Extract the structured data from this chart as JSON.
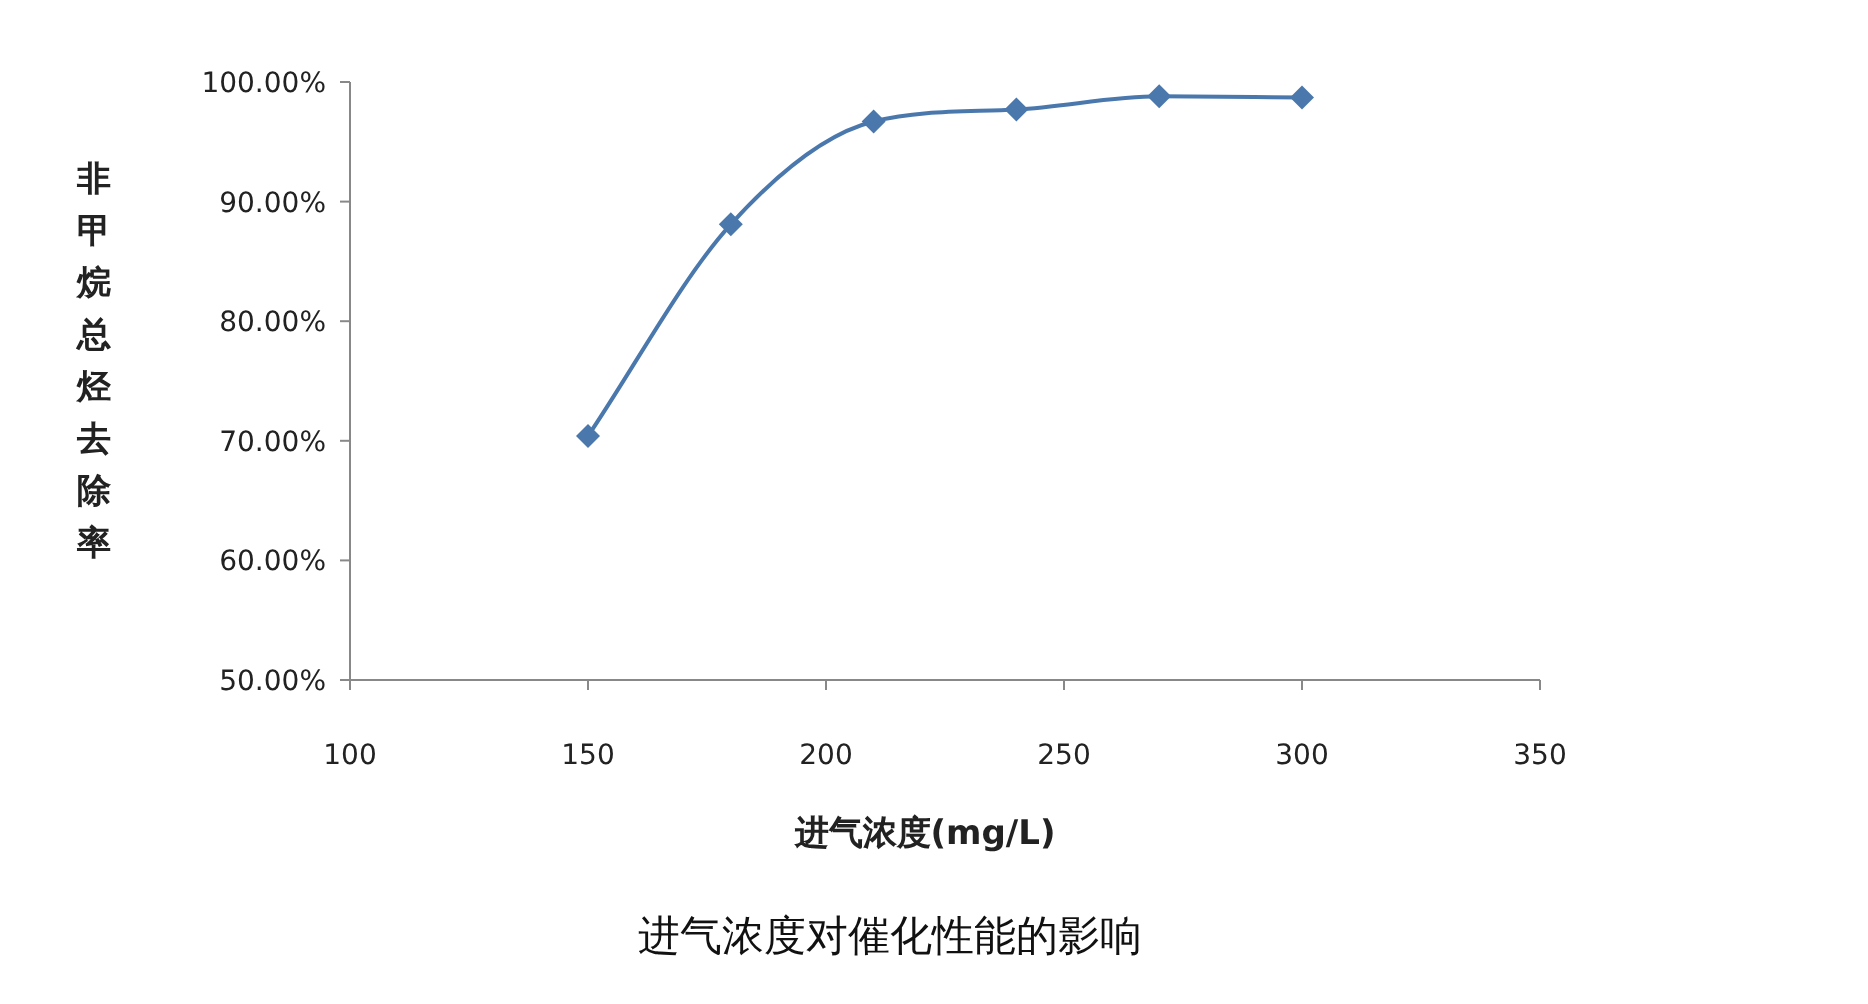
{
  "chart_data": {
    "type": "line",
    "title": "进气浓度对催化性能的影响",
    "xlabel": "进气浓度(mg/L)",
    "ylabel": "非甲烷总烃去除率",
    "x": [
      150,
      180,
      210,
      240,
      270,
      300
    ],
    "series": [
      {
        "color": "#4a78ad",
        "values": [
          70.4,
          88.1,
          96.7,
          97.7,
          98.8,
          98.7
        ]
      }
    ],
    "xlim": [
      100,
      350
    ],
    "xticks": [
      100,
      150,
      200,
      250,
      300,
      350
    ],
    "ylim": [
      50,
      100
    ],
    "yticks": [
      {
        "value": 50,
        "label": "50.00%"
      },
      {
        "value": 60,
        "label": "60.00%"
      },
      {
        "value": 70,
        "label": "70.00%"
      },
      {
        "value": 80,
        "label": "80.00%"
      },
      {
        "value": 90,
        "label": "90.00%"
      },
      {
        "value": 100,
        "label": "100.00%"
      }
    ],
    "marker": "diamond",
    "line_style": "solid",
    "grid": false
  }
}
